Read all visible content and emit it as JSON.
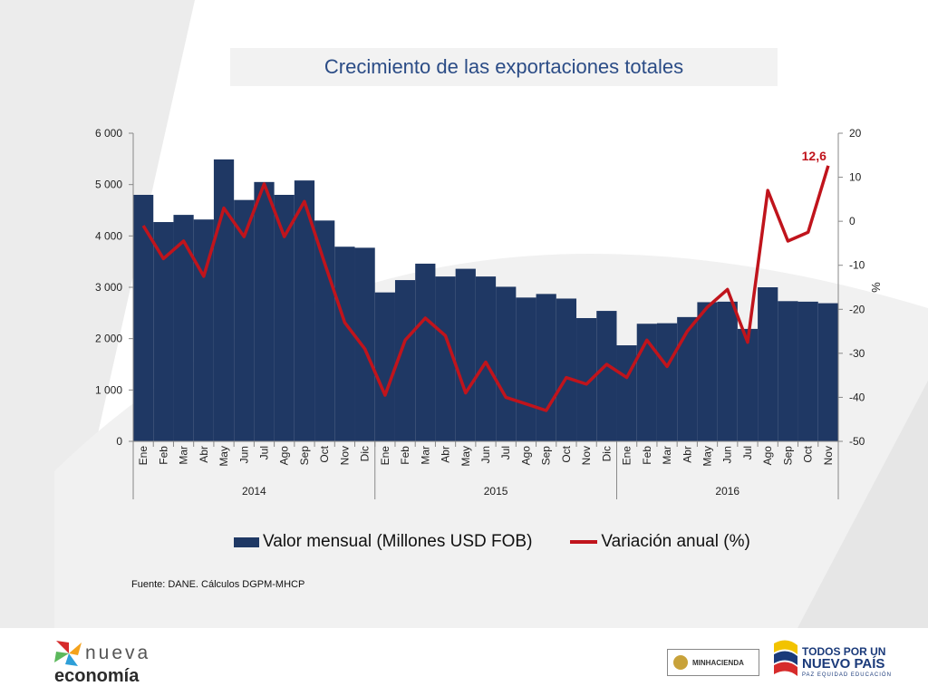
{
  "title": "Crecimiento de las exportaciones totales",
  "source": "Fuente: DANE. Cálculos DGPM-MHCP",
  "chart_data": {
    "type": "bar",
    "categories": [
      "Ene",
      "Feb",
      "Mar",
      "Abr",
      "May",
      "Jun",
      "Jul",
      "Ago",
      "Sep",
      "Oct",
      "Nov",
      "Dic",
      "Ene",
      "Feb",
      "Mar",
      "Abr",
      "May",
      "Jun",
      "Jul",
      "Ago",
      "Sep",
      "Oct",
      "Nov",
      "Dic",
      "Ene",
      "Feb",
      "Mar",
      "Abr",
      "May",
      "Jun",
      "Jul",
      "Ago",
      "Sep",
      "Oct",
      "Nov"
    ],
    "years": [
      {
        "label": "2014",
        "count": 12
      },
      {
        "label": "2015",
        "count": 12
      },
      {
        "label": "2016",
        "count": 11
      }
    ],
    "series": [
      {
        "name": "Valor mensual (Millones USD FOB)",
        "type": "bar",
        "axis": "left",
        "color": "#1f3864",
        "values": [
          4800,
          4270,
          4410,
          4320,
          5490,
          4700,
          5050,
          4800,
          5080,
          4300,
          3790,
          3770,
          2900,
          3140,
          3460,
          3210,
          3360,
          3210,
          3010,
          2800,
          2870,
          2780,
          2400,
          2540,
          1870,
          2290,
          2300,
          2420,
          2710,
          2720,
          2190,
          3000,
          2730,
          2720,
          2690
        ]
      },
      {
        "name": "Variación anual (%)",
        "type": "line",
        "axis": "right",
        "color": "#c0141c",
        "values": [
          -1,
          -8.5,
          -4.5,
          -12.5,
          3,
          -3.5,
          8.5,
          -3.5,
          4.5,
          -9.5,
          -23,
          -29,
          -39.5,
          -27,
          -22,
          -26,
          -39,
          -32,
          -40,
          -41.5,
          -43,
          -35.5,
          -37,
          -32.5,
          -35.5,
          -27,
          -33,
          -25,
          -19.5,
          -15.5,
          -27.5,
          7,
          -4.5,
          -2.5,
          12.6
        ]
      }
    ],
    "annotation": "12,6",
    "left_axis": {
      "min": 0,
      "max": 6000,
      "ticks": [
        "0",
        "1 000",
        "2 000",
        "3 000",
        "4 000",
        "5 000",
        "6 000"
      ]
    },
    "right_axis": {
      "min": -50,
      "max": 20,
      "label": "%",
      "ticks": [
        "-50",
        "-40",
        "-30",
        "-20",
        "-10",
        "0",
        "10",
        "20"
      ]
    },
    "legend_position": "bottom"
  }
}
